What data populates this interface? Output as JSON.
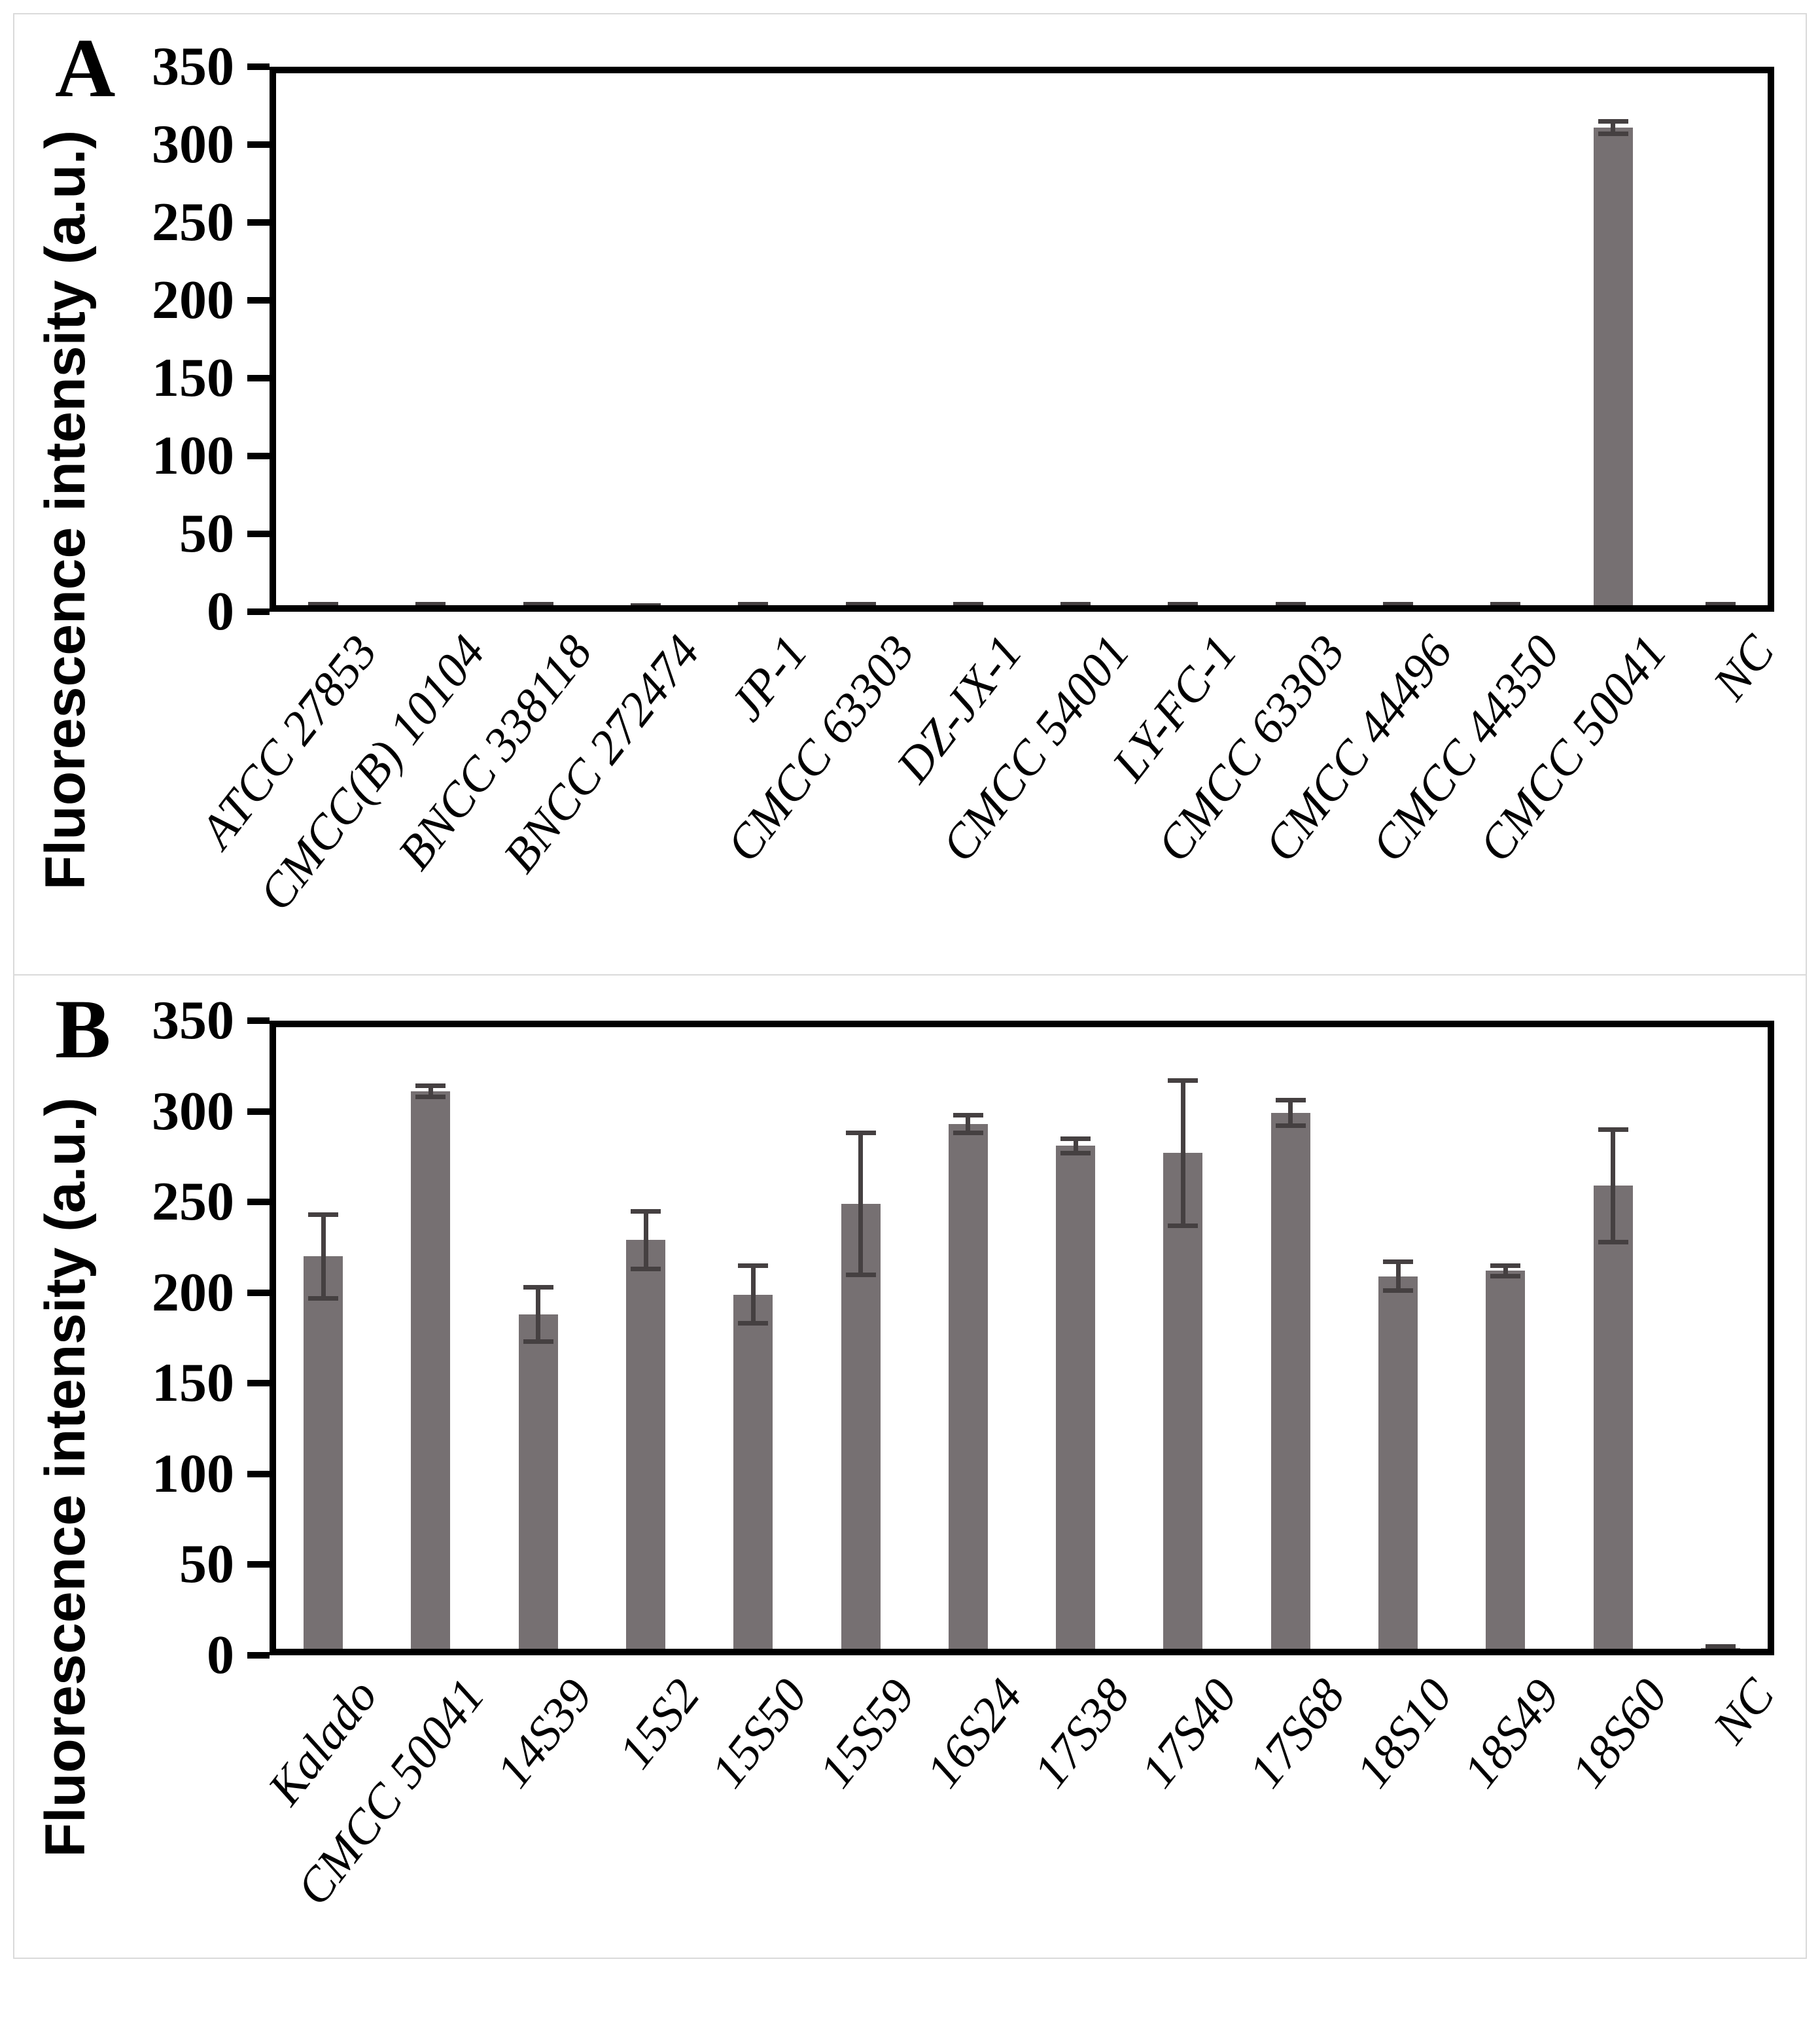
{
  "figure": {
    "background": "#ffffff",
    "frame_border_color": "#dadada",
    "axis_color": "#000000",
    "bar_color": "#767072",
    "error_bar_color": "#454041"
  },
  "chart_data": [
    {
      "type": "bar",
      "panel_label": "A",
      "title": "",
      "xlabel": "",
      "ylabel": "Fluorescence intensity (a.u.)",
      "ylim": [
        0,
        350
      ],
      "yticks": [
        0,
        50,
        100,
        150,
        200,
        250,
        300,
        350
      ],
      "grid": false,
      "legend_position": "none",
      "categories": [
        "ATCC 27853",
        "CMCC(B) 10104",
        "BNCC 338118",
        "BNCC 272474",
        "JP-1",
        "CMCC 63303",
        "DZ-JX-1",
        "CMCC 54001",
        "LY-FC-1",
        "CMCC 63303",
        "CMCC 44496",
        "CMCC 44350",
        "CMCC 50041",
        "NC"
      ],
      "values": [
        4,
        4,
        4,
        3,
        4,
        4,
        4,
        4,
        4,
        4,
        4,
        4,
        311,
        4
      ],
      "errors": [
        1,
        1,
        1,
        1,
        1,
        1,
        1,
        1,
        1,
        1,
        1,
        1,
        4,
        1
      ]
    },
    {
      "type": "bar",
      "panel_label": "B",
      "title": "",
      "xlabel": "",
      "ylabel": "Fluorescence intensity (a.u.)",
      "ylim": [
        0,
        350
      ],
      "yticks": [
        0,
        50,
        100,
        150,
        200,
        250,
        300,
        350
      ],
      "grid": false,
      "legend_position": "none",
      "categories": [
        "Kalado",
        "CMCC 50041",
        "14S39",
        "15S2",
        "15S50",
        "15S59",
        "16S24",
        "17S38",
        "17S40",
        "17S68",
        "18S10",
        "18S49",
        "18S60",
        "NC"
      ],
      "values": [
        220,
        311,
        188,
        229,
        199,
        249,
        293,
        281,
        277,
        299,
        209,
        212,
        259,
        4
      ],
      "errors": [
        23,
        3,
        15,
        16,
        16,
        39,
        5,
        4,
        40,
        7,
        8,
        3,
        31,
        1
      ]
    }
  ]
}
